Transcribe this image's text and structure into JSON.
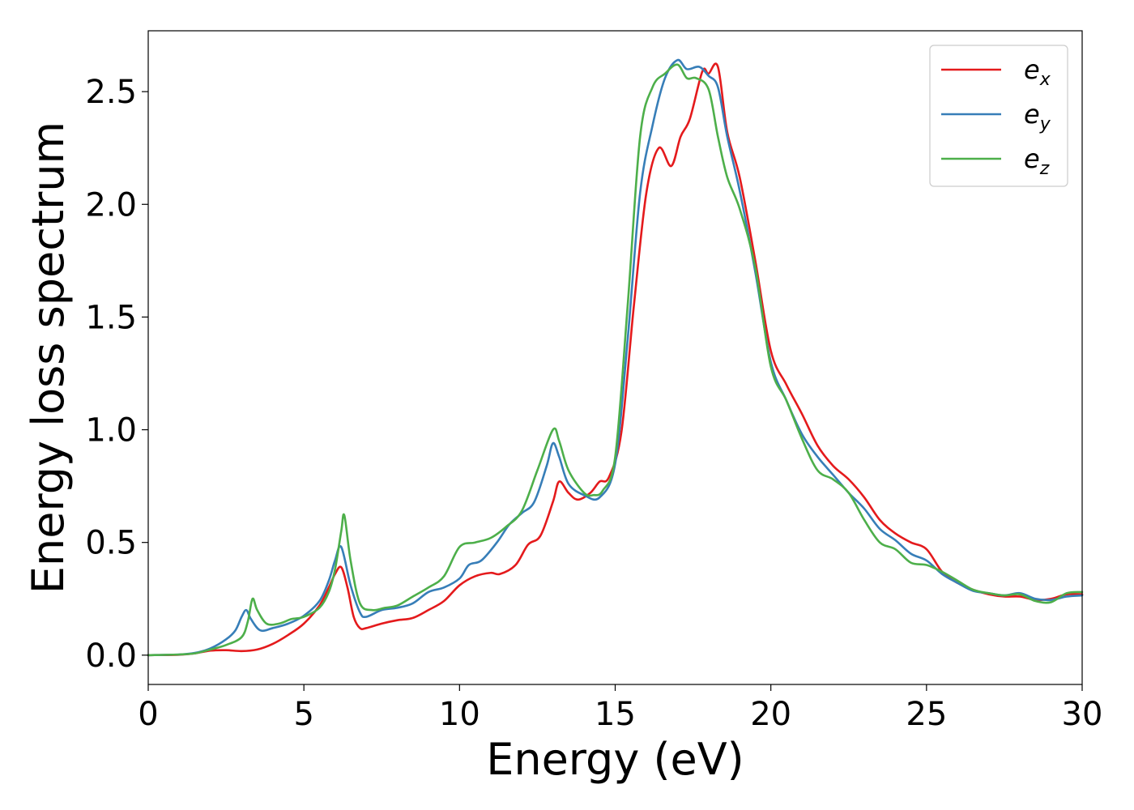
{
  "chart_data": {
    "type": "line",
    "xlabel": "Energy (eV)",
    "ylabel": "Energy loss spectrum",
    "xlim": [
      0,
      30
    ],
    "ylim": [
      -0.13,
      2.77
    ],
    "xticks": [
      0,
      5,
      10,
      15,
      20,
      25,
      30
    ],
    "xtick_labels": [
      "0",
      "5",
      "10",
      "15",
      "20",
      "25",
      "30"
    ],
    "yticks": [
      0.0,
      0.5,
      1.0,
      1.5,
      2.0,
      2.5
    ],
    "ytick_labels": [
      "0.0",
      "0.5",
      "1.0",
      "1.5",
      "2.0",
      "2.5"
    ],
    "grid": false,
    "legend_position": "top-right",
    "series": [
      {
        "name": "e_x",
        "label_base": "e",
        "label_sub": "x",
        "color": "#e41a1c",
        "points": [
          [
            0,
            0
          ],
          [
            1,
            0.002
          ],
          [
            1.5,
            0.008
          ],
          [
            2,
            0.02
          ],
          [
            2.5,
            0.022
          ],
          [
            3,
            0.018
          ],
          [
            3.5,
            0.025
          ],
          [
            4,
            0.05
          ],
          [
            4.5,
            0.09
          ],
          [
            5,
            0.14
          ],
          [
            5.5,
            0.22
          ],
          [
            5.8,
            0.3
          ],
          [
            6,
            0.36
          ],
          [
            6.2,
            0.39
          ],
          [
            6.4,
            0.3
          ],
          [
            6.6,
            0.17
          ],
          [
            6.8,
            0.12
          ],
          [
            7,
            0.12
          ],
          [
            7.5,
            0.14
          ],
          [
            8,
            0.155
          ],
          [
            8.5,
            0.165
          ],
          [
            9,
            0.2
          ],
          [
            9.5,
            0.24
          ],
          [
            10,
            0.31
          ],
          [
            10.5,
            0.35
          ],
          [
            11,
            0.365
          ],
          [
            11.3,
            0.36
          ],
          [
            11.8,
            0.4
          ],
          [
            12.2,
            0.49
          ],
          [
            12.6,
            0.53
          ],
          [
            13,
            0.68
          ],
          [
            13.2,
            0.77
          ],
          [
            13.5,
            0.72
          ],
          [
            13.8,
            0.69
          ],
          [
            14.2,
            0.72
          ],
          [
            14.5,
            0.77
          ],
          [
            14.8,
            0.79
          ],
          [
            15.2,
            0.99
          ],
          [
            15.6,
            1.55
          ],
          [
            16,
            2.05
          ],
          [
            16.4,
            2.25
          ],
          [
            16.8,
            2.17
          ],
          [
            17.1,
            2.3
          ],
          [
            17.4,
            2.38
          ],
          [
            17.8,
            2.59
          ],
          [
            18,
            2.58
          ],
          [
            18.3,
            2.61
          ],
          [
            18.6,
            2.32
          ],
          [
            19,
            2.12
          ],
          [
            19.5,
            1.75
          ],
          [
            20,
            1.35
          ],
          [
            20.5,
            1.2
          ],
          [
            21,
            1.07
          ],
          [
            21.5,
            0.93
          ],
          [
            22,
            0.84
          ],
          [
            22.5,
            0.78
          ],
          [
            23,
            0.7
          ],
          [
            23.5,
            0.6
          ],
          [
            24,
            0.54
          ],
          [
            24.5,
            0.5
          ],
          [
            25,
            0.47
          ],
          [
            25.5,
            0.37
          ],
          [
            26,
            0.32
          ],
          [
            26.5,
            0.29
          ],
          [
            27,
            0.27
          ],
          [
            27.5,
            0.26
          ],
          [
            28,
            0.26
          ],
          [
            28.5,
            0.245
          ],
          [
            29,
            0.25
          ],
          [
            29.5,
            0.27
          ],
          [
            30,
            0.27
          ]
        ]
      },
      {
        "name": "e_y",
        "label_base": "e",
        "label_sub": "y",
        "color": "#377eb8",
        "points": [
          [
            0,
            0
          ],
          [
            1,
            0.003
          ],
          [
            1.5,
            0.01
          ],
          [
            2,
            0.03
          ],
          [
            2.5,
            0.07
          ],
          [
            2.8,
            0.11
          ],
          [
            3,
            0.17
          ],
          [
            3.15,
            0.2
          ],
          [
            3.3,
            0.16
          ],
          [
            3.6,
            0.11
          ],
          [
            4,
            0.12
          ],
          [
            4.5,
            0.14
          ],
          [
            5,
            0.175
          ],
          [
            5.5,
            0.24
          ],
          [
            5.8,
            0.33
          ],
          [
            6,
            0.42
          ],
          [
            6.2,
            0.48
          ],
          [
            6.5,
            0.31
          ],
          [
            6.8,
            0.19
          ],
          [
            7,
            0.17
          ],
          [
            7.5,
            0.2
          ],
          [
            8,
            0.21
          ],
          [
            8.5,
            0.23
          ],
          [
            9,
            0.28
          ],
          [
            9.5,
            0.3
          ],
          [
            10,
            0.34
          ],
          [
            10.3,
            0.4
          ],
          [
            10.7,
            0.42
          ],
          [
            11.2,
            0.5
          ],
          [
            11.6,
            0.58
          ],
          [
            12,
            0.63
          ],
          [
            12.4,
            0.68
          ],
          [
            12.8,
            0.84
          ],
          [
            13,
            0.94
          ],
          [
            13.2,
            0.88
          ],
          [
            13.5,
            0.76
          ],
          [
            14,
            0.71
          ],
          [
            14.5,
            0.7
          ],
          [
            15,
            0.85
          ],
          [
            15.4,
            1.4
          ],
          [
            15.8,
            2.05
          ],
          [
            16.2,
            2.35
          ],
          [
            16.6,
            2.56
          ],
          [
            17,
            2.64
          ],
          [
            17.3,
            2.6
          ],
          [
            17.7,
            2.61
          ],
          [
            18,
            2.57
          ],
          [
            18.3,
            2.52
          ],
          [
            18.6,
            2.3
          ],
          [
            19,
            2.06
          ],
          [
            19.5,
            1.7
          ],
          [
            20,
            1.3
          ],
          [
            20.5,
            1.13
          ],
          [
            21,
            0.98
          ],
          [
            21.5,
            0.88
          ],
          [
            22,
            0.8
          ],
          [
            22.5,
            0.72
          ],
          [
            23,
            0.65
          ],
          [
            23.5,
            0.56
          ],
          [
            24,
            0.51
          ],
          [
            24.5,
            0.45
          ],
          [
            25,
            0.42
          ],
          [
            25.5,
            0.36
          ],
          [
            26,
            0.32
          ],
          [
            26.5,
            0.285
          ],
          [
            27,
            0.275
          ],
          [
            27.5,
            0.265
          ],
          [
            28,
            0.275
          ],
          [
            28.5,
            0.25
          ],
          [
            29,
            0.245
          ],
          [
            29.5,
            0.26
          ],
          [
            30,
            0.265
          ]
        ]
      },
      {
        "name": "e_z",
        "label_base": "e",
        "label_sub": "z",
        "color": "#4daf4a",
        "points": [
          [
            0,
            0
          ],
          [
            1,
            0.003
          ],
          [
            1.5,
            0.008
          ],
          [
            2,
            0.025
          ],
          [
            2.5,
            0.045
          ],
          [
            3,
            0.08
          ],
          [
            3.2,
            0.15
          ],
          [
            3.35,
            0.25
          ],
          [
            3.5,
            0.2
          ],
          [
            3.8,
            0.14
          ],
          [
            4.2,
            0.14
          ],
          [
            4.6,
            0.16
          ],
          [
            5,
            0.17
          ],
          [
            5.5,
            0.21
          ],
          [
            5.8,
            0.28
          ],
          [
            6,
            0.38
          ],
          [
            6.2,
            0.55
          ],
          [
            6.3,
            0.62
          ],
          [
            6.5,
            0.42
          ],
          [
            6.8,
            0.23
          ],
          [
            7.2,
            0.2
          ],
          [
            7.6,
            0.21
          ],
          [
            8,
            0.22
          ],
          [
            8.5,
            0.26
          ],
          [
            9,
            0.3
          ],
          [
            9.5,
            0.35
          ],
          [
            10,
            0.48
          ],
          [
            10.5,
            0.5
          ],
          [
            11,
            0.52
          ],
          [
            11.5,
            0.57
          ],
          [
            12,
            0.64
          ],
          [
            12.5,
            0.82
          ],
          [
            13,
            1.0
          ],
          [
            13.2,
            0.95
          ],
          [
            13.5,
            0.82
          ],
          [
            14,
            0.72
          ],
          [
            14.3,
            0.71
          ],
          [
            14.6,
            0.73
          ],
          [
            15,
            0.88
          ],
          [
            15.4,
            1.55
          ],
          [
            15.8,
            2.3
          ],
          [
            16.2,
            2.52
          ],
          [
            16.6,
            2.58
          ],
          [
            17,
            2.62
          ],
          [
            17.3,
            2.56
          ],
          [
            17.6,
            2.56
          ],
          [
            18,
            2.51
          ],
          [
            18.3,
            2.3
          ],
          [
            18.6,
            2.12
          ],
          [
            19,
            1.98
          ],
          [
            19.5,
            1.72
          ],
          [
            20,
            1.28
          ],
          [
            20.5,
            1.13
          ],
          [
            21,
            0.96
          ],
          [
            21.5,
            0.82
          ],
          [
            22,
            0.78
          ],
          [
            22.5,
            0.72
          ],
          [
            23,
            0.6
          ],
          [
            23.5,
            0.5
          ],
          [
            24,
            0.47
          ],
          [
            24.5,
            0.41
          ],
          [
            25,
            0.4
          ],
          [
            25.5,
            0.37
          ],
          [
            26,
            0.33
          ],
          [
            26.5,
            0.29
          ],
          [
            27,
            0.275
          ],
          [
            27.5,
            0.265
          ],
          [
            28,
            0.27
          ],
          [
            28.5,
            0.24
          ],
          [
            29,
            0.235
          ],
          [
            29.5,
            0.275
          ],
          [
            30,
            0.28
          ]
        ]
      }
    ]
  }
}
